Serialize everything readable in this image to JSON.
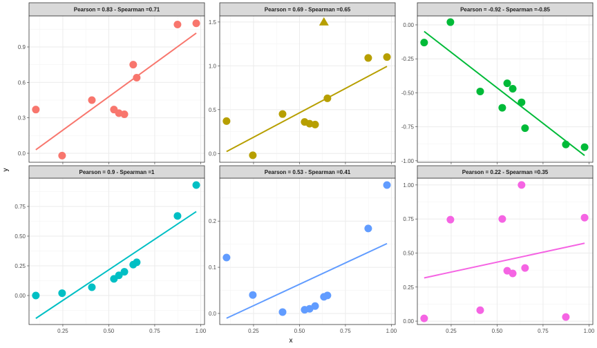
{
  "chart_data": [
    {
      "type": "scatter",
      "title": "Pearson = 0.83 - Spearman =0.71",
      "color": "#F8766D",
      "x": [
        0.103,
        0.246,
        0.408,
        0.528,
        0.555,
        0.585,
        0.633,
        0.652,
        0.874,
        0.976
      ],
      "y": [
        0.37,
        -0.02,
        0.45,
        0.37,
        0.34,
        0.33,
        0.75,
        0.64,
        1.09,
        1.1
      ],
      "outlier": [],
      "ylim": [
        -0.076,
        1.163
      ],
      "yticks": [
        0,
        0.3,
        0.6,
        0.9
      ],
      "yticklabels": [
        "0.0",
        "0.3",
        "0.6",
        "0.9"
      ]
    },
    {
      "type": "scatter",
      "title": "Pearson = 0.69 - Spearman =0.65",
      "color": "#B79F00",
      "x": [
        0.103,
        0.246,
        0.408,
        0.528,
        0.555,
        0.585,
        0.633,
        0.652,
        0.874,
        0.976
      ],
      "y": [
        0.37,
        -0.02,
        0.45,
        0.36,
        0.34,
        0.33,
        1.5,
        0.63,
        1.09,
        1.1
      ],
      "outlier": [
        6
      ],
      "ylim": [
        -0.1,
        1.57
      ],
      "yticks": [
        0,
        0.5,
        1.0,
        1.5
      ],
      "yticklabels": [
        "0.0",
        "0.5",
        "1.0",
        "1.5"
      ]
    },
    {
      "type": "scatter",
      "title": "Pearson = -0.92 - Spearman =-0.85",
      "color": "#00BA38",
      "x": [
        0.103,
        0.246,
        0.408,
        0.528,
        0.555,
        0.585,
        0.633,
        0.652,
        0.874,
        0.976
      ],
      "y": [
        -0.13,
        0.02,
        -0.49,
        -0.61,
        -0.43,
        -0.47,
        -0.57,
        -0.76,
        -0.88,
        -0.9
      ],
      "outlier": [],
      "ylim": [
        -1.011,
        0.066
      ],
      "yticks": [
        0,
        -0.25,
        -0.5,
        -0.75,
        -1.0
      ],
      "yticklabels": [
        "0.00",
        "-0.25",
        "-0.50",
        "-0.75",
        "-1.00"
      ]
    },
    {
      "type": "scatter",
      "title": "Pearson = 0.9 - Spearman =1",
      "color": "#00BFC4",
      "x": [
        0.103,
        0.246,
        0.408,
        0.528,
        0.555,
        0.585,
        0.633,
        0.652,
        0.874,
        0.976
      ],
      "y": [
        0.0,
        0.02,
        0.07,
        0.14,
        0.17,
        0.2,
        0.26,
        0.28,
        0.67,
        0.93
      ],
      "outlier": [],
      "ylim": [
        -0.244,
        0.988
      ],
      "yticks": [
        0,
        0.25,
        0.5,
        0.75
      ],
      "yticklabels": [
        "0.00",
        "0.25",
        "0.50",
        "0.75"
      ]
    },
    {
      "type": "scatter",
      "title": "Pearson = 0.53 - Spearman =0.41",
      "color": "#619CFF",
      "x": [
        0.103,
        0.246,
        0.408,
        0.528,
        0.555,
        0.585,
        0.633,
        0.652,
        0.874,
        0.976
      ],
      "y": [
        0.121,
        0.04,
        0.003,
        0.008,
        0.01,
        0.016,
        0.036,
        0.039,
        0.184,
        0.278
      ],
      "outlier": [],
      "ylim": [
        -0.024,
        0.293
      ],
      "yticks": [
        0,
        0.1,
        0.2
      ],
      "yticklabels": [
        "0.0",
        "0.1",
        "0.2"
      ]
    },
    {
      "type": "scatter",
      "title": "Pearson = 0.22 - Spearman =0.35",
      "color": "#F564E3",
      "x": [
        0.103,
        0.246,
        0.408,
        0.528,
        0.555,
        0.585,
        0.633,
        0.652,
        0.874,
        0.976
      ],
      "y": [
        0.02,
        0.745,
        0.08,
        0.75,
        0.37,
        0.35,
        1.0,
        0.39,
        0.03,
        0.76
      ],
      "outlier": [],
      "ylim": [
        -0.025,
        1.05
      ],
      "yticks": [
        0,
        0.25,
        0.5,
        0.75,
        1.0
      ],
      "yticklabels": [
        "0.00",
        "0.25",
        "0.50",
        "0.75",
        "1.00"
      ]
    }
  ],
  "shared": {
    "xlabel": "x",
    "ylabel": "y",
    "xlim": [
      0.066,
      1.021
    ],
    "xticks": [
      0.25,
      0.5,
      0.75,
      1.0
    ],
    "xticklabels": [
      "0.25",
      "0.50",
      "0.75",
      "1.00"
    ]
  }
}
